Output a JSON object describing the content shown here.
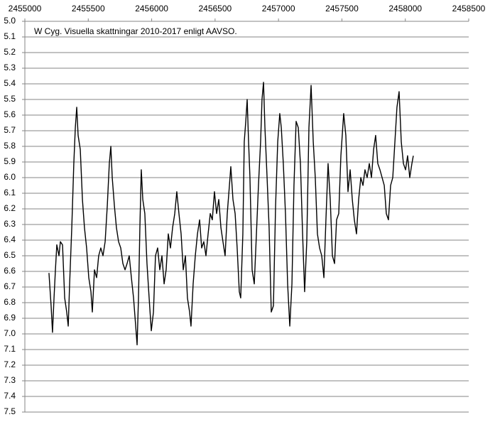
{
  "chart_data": {
    "type": "line",
    "title": "W Cyg. Visuella skattningar 2010-2017 enligt AAVSO.",
    "color": "#000000",
    "grid": true,
    "xlim": [
      2455000,
      2458500
    ],
    "xticks": [
      2455000,
      2455500,
      2456000,
      2456500,
      2457000,
      2457500,
      2458000,
      2458500
    ],
    "ylim": [
      7.5,
      5.0
    ],
    "yticks": [
      {
        "value": 5,
        "label": "5.0"
      },
      5.1,
      5.2,
      5.3,
      5.4,
      5.5,
      5.6,
      5.7,
      5.8,
      5.9,
      {
        "value": 6,
        "label": "6.0"
      },
      6.1,
      6.2,
      6.3,
      6.4,
      6.5,
      6.6,
      6.7,
      6.8,
      6.9,
      {
        "value": 7,
        "label": "7.0"
      },
      7.1,
      7.2,
      7.3,
      7.4,
      7.5
    ],
    "x": [
      2455190,
      2455207,
      2455218,
      2455230,
      2455241,
      2455252,
      2455269,
      2455280,
      2455297,
      2455314,
      2455330,
      2455342,
      2455353,
      2455370,
      2455386,
      2455398,
      2455409,
      2455420,
      2455437,
      2455454,
      2455470,
      2455487,
      2455504,
      2455521,
      2455532,
      2455549,
      2455566,
      2455582,
      2455599,
      2455616,
      2455633,
      2455650,
      2455666,
      2455678,
      2455689,
      2455706,
      2455722,
      2455739,
      2455756,
      2455773,
      2455790,
      2455806,
      2455823,
      2455840,
      2455857,
      2455874,
      2455885,
      2455896,
      2455907,
      2455918,
      2455930,
      2455946,
      2455963,
      2455980,
      2455997,
      2456014,
      2456030,
      2456047,
      2456064,
      2456081,
      2456098,
      2456114,
      2456131,
      2456148,
      2456165,
      2456182,
      2456198,
      2456215,
      2456232,
      2456249,
      2456266,
      2456282,
      2456299,
      2456310,
      2456327,
      2456344,
      2456361,
      2456378,
      2456394,
      2456411,
      2456428,
      2456445,
      2456462,
      2456478,
      2456495,
      2456512,
      2456529,
      2456546,
      2456562,
      2456579,
      2456596,
      2456613,
      2456624,
      2456641,
      2456658,
      2456674,
      2456691,
      2456702,
      2456719,
      2456730,
      2456742,
      2456753,
      2456764,
      2456775,
      2456792,
      2456809,
      2456826,
      2456842,
      2456859,
      2456870,
      2456882,
      2456893,
      2456910,
      2456926,
      2456943,
      2456960,
      2456977,
      2456994,
      2457010,
      2457022,
      2457038,
      2457055,
      2457072,
      2457089,
      2457106,
      2457122,
      2457139,
      2457156,
      2457173,
      2457190,
      2457206,
      2457223,
      2457240,
      2457257,
      2457274,
      2457290,
      2457307,
      2457324,
      2457341,
      2457358,
      2457374,
      2457391,
      2457408,
      2457425,
      2457442,
      2457458,
      2457475,
      2457492,
      2457514,
      2457531,
      2457548,
      2457565,
      2457582,
      2457598,
      2457615,
      2457632,
      2457649,
      2457666,
      2457682,
      2457699,
      2457716,
      2457733,
      2457750,
      2457766,
      2457783,
      2457800,
      2457817,
      2457834,
      2457850,
      2457867,
      2457884,
      2457901,
      2457918,
      2457934,
      2457951,
      2457968,
      2457985,
      2458002,
      2458018,
      2458035,
      2458052,
      2458063
    ],
    "values": [
      6.61,
      6.82,
      6.99,
      6.77,
      6.59,
      6.43,
      6.5,
      6.41,
      6.43,
      6.77,
      6.86,
      6.95,
      6.68,
      6.32,
      5.91,
      5.68,
      5.55,
      5.73,
      5.82,
      6.14,
      6.32,
      6.45,
      6.64,
      6.73,
      6.86,
      6.59,
      6.64,
      6.5,
      6.45,
      6.5,
      6.41,
      6.18,
      5.91,
      5.8,
      6.0,
      6.18,
      6.32,
      6.41,
      6.45,
      6.55,
      6.59,
      6.55,
      6.5,
      6.64,
      6.77,
      6.95,
      7.07,
      6.77,
      6.32,
      5.95,
      6.14,
      6.23,
      6.55,
      6.77,
      6.98,
      6.86,
      6.5,
      6.45,
      6.59,
      6.5,
      6.68,
      6.59,
      6.36,
      6.45,
      6.32,
      6.23,
      6.09,
      6.23,
      6.36,
      6.59,
      6.5,
      6.77,
      6.86,
      6.95,
      6.68,
      6.5,
      6.36,
      6.27,
      6.45,
      6.41,
      6.5,
      6.36,
      6.23,
      6.27,
      6.09,
      6.23,
      6.14,
      6.32,
      6.41,
      6.5,
      6.23,
      6.05,
      5.93,
      6.14,
      6.23,
      6.45,
      6.73,
      6.77,
      6.36,
      5.77,
      5.64,
      5.5,
      5.77,
      6.0,
      6.59,
      6.68,
      6.36,
      6.05,
      5.77,
      5.5,
      5.39,
      5.68,
      6.0,
      6.32,
      6.86,
      6.82,
      6.18,
      5.77,
      5.59,
      5.68,
      5.91,
      6.23,
      6.68,
      6.95,
      6.68,
      6.05,
      5.64,
      5.68,
      5.91,
      6.36,
      6.73,
      6.41,
      5.68,
      5.41,
      5.77,
      6.0,
      6.36,
      6.45,
      6.5,
      6.64,
      6.27,
      5.91,
      6.14,
      6.5,
      6.55,
      6.27,
      6.23,
      5.86,
      5.59,
      5.73,
      6.09,
      5.95,
      6.14,
      6.27,
      6.36,
      6.14,
      6.0,
      6.05,
      5.95,
      6.0,
      5.91,
      6.0,
      5.82,
      5.73,
      5.91,
      5.95,
      6.0,
      6.05,
      6.23,
      6.27,
      6.05,
      6.0,
      5.77,
      5.55,
      5.45,
      5.77,
      5.91,
      5.95,
      5.86,
      6.0,
      5.91,
      5.86
    ]
  }
}
